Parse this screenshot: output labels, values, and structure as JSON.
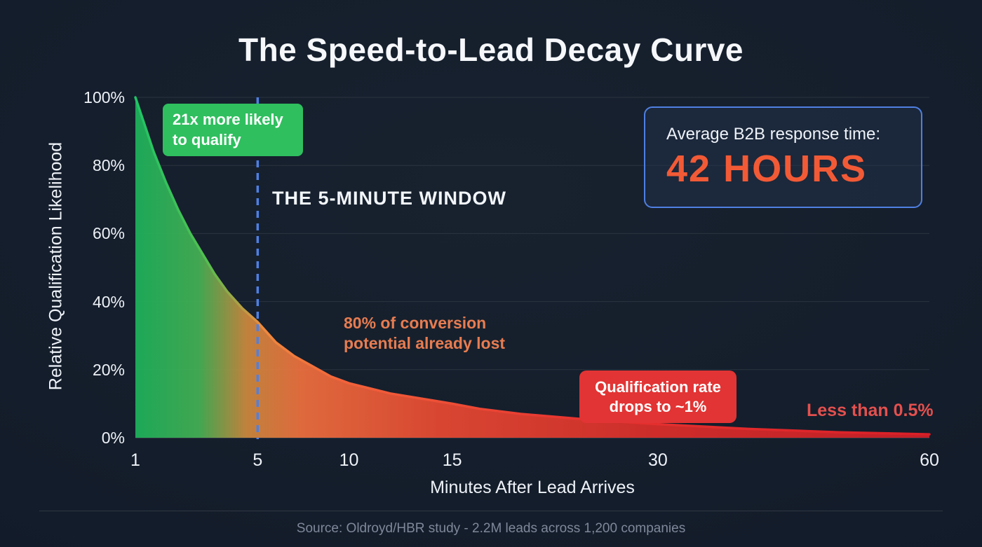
{
  "page": {
    "title": "The Speed-to-Lead Decay Curve",
    "source": "Source: Oldroyd/HBR study - 2.2M leads across 1,200 companies"
  },
  "chart_data": {
    "type": "area",
    "title": "The Speed-to-Lead Decay Curve",
    "xlabel": "Minutes After Lead Arrives",
    "ylabel": "Relative Qualification Likelihood",
    "x_scale": "nonlinear-compressed",
    "x_ticks": [
      1,
      5,
      10,
      15,
      30,
      60
    ],
    "y_ticks": [
      0,
      20,
      40,
      60,
      80,
      100
    ],
    "y_tick_suffix": "%",
    "ylim": [
      0,
      100
    ],
    "grid": "horizontal",
    "legend": "none",
    "series": [
      {
        "name": "Relative qualification likelihood (%)",
        "x": [
          1,
          1.3,
          1.6,
          2,
          2.4,
          2.8,
          3.2,
          3.6,
          4,
          4.5,
          5,
          5.5,
          6,
          7,
          8,
          9,
          10,
          11,
          12,
          14,
          15,
          17,
          20,
          25,
          30,
          40,
          50,
          60
        ],
        "values": [
          100,
          92,
          84,
          75,
          67,
          60,
          54,
          48,
          43,
          38,
          34,
          31,
          28,
          24,
          21,
          18,
          16,
          14.5,
          13,
          11,
          10,
          8.5,
          7,
          5.3,
          4,
          2.6,
          1.6,
          1
        ]
      }
    ],
    "reference_line": {
      "x": 5,
      "label": "THE 5-MINUTE WINDOW",
      "style": "dashed",
      "color": "#4f80e2"
    },
    "annotations": [
      {
        "text": "21x more likely to qualify",
        "type": "badge",
        "color": "#2fbf5f"
      },
      {
        "text": "80% of conversion potential already lost",
        "type": "text",
        "color": "#e87c50"
      },
      {
        "text": "Qualification rate drops to ~1%",
        "type": "badge",
        "color": "#e23434"
      },
      {
        "text": "Less than 0.5%",
        "type": "text",
        "color": "#e4504e"
      }
    ],
    "area_gradient": [
      "#1fc566",
      "#f07a3c",
      "#d62027"
    ]
  },
  "callout_box": {
    "label": "Average B2B response time:",
    "value": "42 HOURS",
    "value_color": "#f25a36",
    "border_color": "#4f80e2"
  },
  "colors": {
    "background": "#131c2a",
    "text": "#eef2f8",
    "muted_text": "#7e8899"
  }
}
